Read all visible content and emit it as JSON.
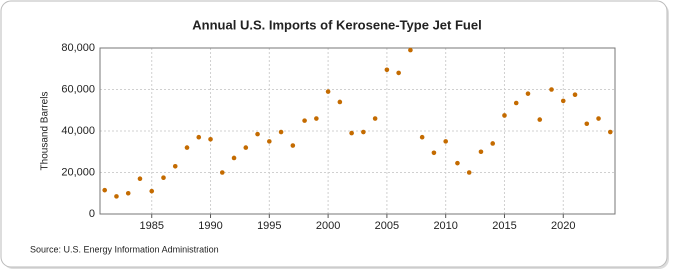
{
  "chart_data": {
    "type": "scatter",
    "title": "Annual U.S. Imports of Kerosene-Type Jet Fuel",
    "y_label": "Thousand Barrels",
    "source": "Source: U.S. Energy Information Administration",
    "color": "#c46b00",
    "x": [
      1981,
      1982,
      1983,
      1984,
      1985,
      1986,
      1987,
      1988,
      1989,
      1990,
      1991,
      1992,
      1993,
      1994,
      1995,
      1996,
      1997,
      1998,
      1999,
      2000,
      2001,
      2002,
      2003,
      2004,
      2005,
      2006,
      2007,
      2008,
      2009,
      2010,
      2011,
      2012,
      2013,
      2014,
      2015,
      2016,
      2017,
      2018,
      2019,
      2020,
      2021,
      2022,
      2023,
      2024
    ],
    "values": [
      11500,
      8500,
      10000,
      17000,
      11000,
      17500,
      23000,
      32000,
      37000,
      36000,
      20000,
      27000,
      32000,
      38500,
      35000,
      39500,
      33000,
      45000,
      46000,
      59000,
      54000,
      39000,
      39500,
      46000,
      69500,
      68000,
      79000,
      37000,
      29500,
      35000,
      24500,
      20000,
      30000,
      34000,
      47500,
      53500,
      58000,
      45500,
      60000,
      54500,
      57500,
      43500,
      46000,
      39500
    ],
    "xlim": [
      1980.6,
      2024.4
    ],
    "xticks": [
      1985,
      1990,
      1995,
      2000,
      2005,
      2010,
      2015,
      2020
    ],
    "ylim": [
      0,
      80000
    ],
    "yticks": [
      0,
      {
        "value": 20000,
        "label": "20,000"
      },
      {
        "value": 40000,
        "label": "40,000"
      },
      {
        "value": 60000,
        "label": "60,000"
      },
      {
        "value": 80000,
        "label": "80,000"
      }
    ],
    "grid": true
  }
}
